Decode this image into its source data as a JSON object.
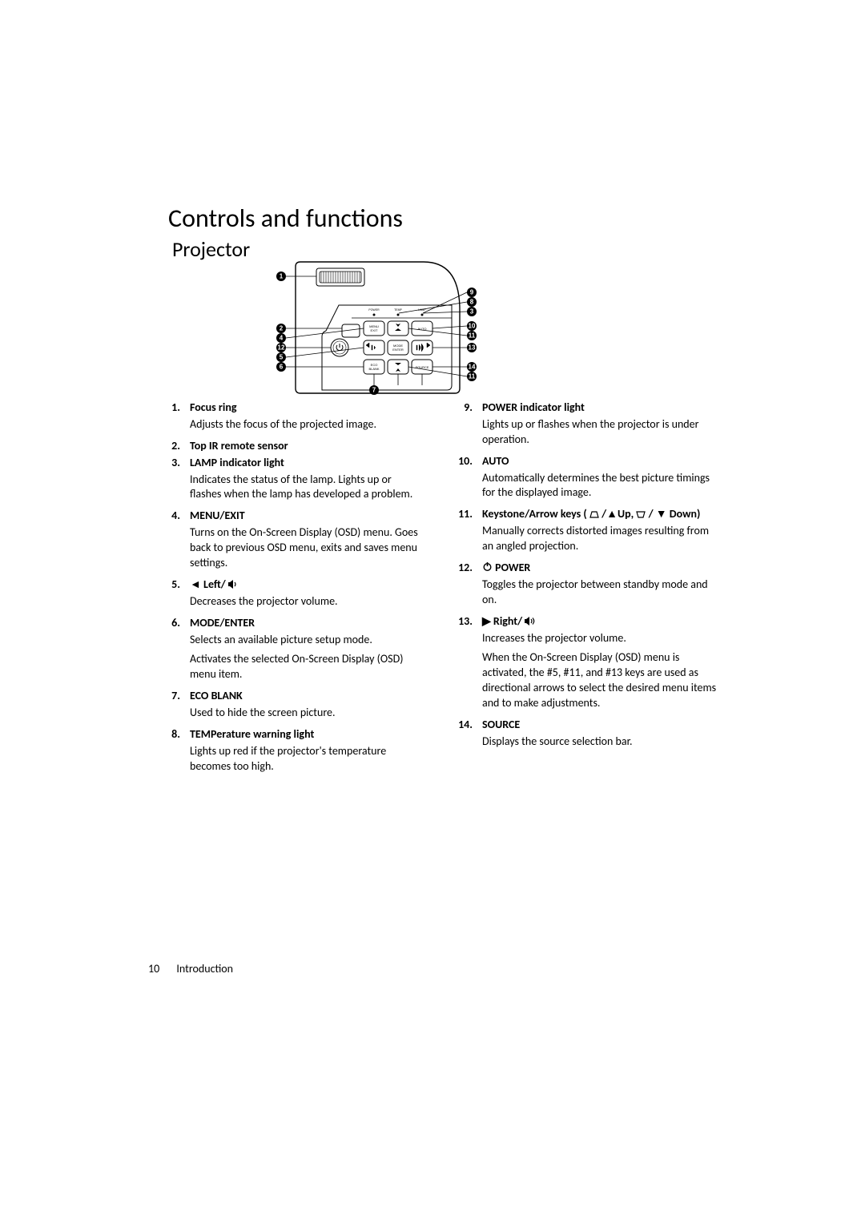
{
  "page": {
    "title": "Controls and functions",
    "subtitle": "Projector",
    "footer_page": "10",
    "footer_section": "Introduction"
  },
  "diagram": {
    "buttons": {
      "menu_exit": "MENU\nEXIT",
      "auto": "AUTO",
      "mode_enter": "MODE\nENTER",
      "eco_blank": "ECO\nBLANK",
      "source": "SOURCE"
    },
    "indicators": {
      "power": "POWER",
      "temp": "TEMP",
      "lamp": "LAMP"
    },
    "callouts": [
      "1",
      "2",
      "3",
      "4",
      "5",
      "6",
      "7",
      "8",
      "9",
      "10",
      "11",
      "12",
      "13",
      "14"
    ]
  },
  "left_items": [
    {
      "num": "1.",
      "heading": "Focus ring",
      "desc": "Adjusts the focus of the projected image."
    },
    {
      "num": "2.",
      "heading": "Top IR remote sensor",
      "desc": ""
    },
    {
      "num": "3.",
      "heading": "LAMP indicator light",
      "desc": "Indicates the status of the lamp. Lights up or flashes when the lamp has developed a problem."
    },
    {
      "num": "4.",
      "heading": "MENU/EXIT",
      "desc": "Turns on the On-Screen Display (OSD) menu. Goes back to previous OSD menu, exits and saves menu settings."
    },
    {
      "num": "5.",
      "heading": "◄ Left/ ",
      "icon": "vol-down",
      "desc": "Decreases the projector volume."
    },
    {
      "num": "6.",
      "heading": "MODE/ENTER",
      "desc": "Selects an available picture setup mode.",
      "desc2": "Activates the selected On-Screen Display (OSD) menu item."
    },
    {
      "num": "7.",
      "heading": "ECO BLANK",
      "desc": "Used to hide the screen picture."
    },
    {
      "num": "8.",
      "heading": "TEMPerature warning light",
      "desc": "Lights up red if the projector's temperature becomes too high."
    }
  ],
  "right_items": [
    {
      "num": "9.",
      "heading": "POWER indicator light",
      "desc": "Lights up or flashes when the projector is under operation."
    },
    {
      "num": "10.",
      "heading": "AUTO",
      "desc": "Automatically determines the best picture timings for the displayed image."
    },
    {
      "num": "11.",
      "heading_pre": "Keystone/Arrow keys ( ",
      "heading_mid1": " /▲Up,  ",
      "heading_mid2": " / ▼ Down)",
      "desc": "Manually corrects distorted images resulting from an angled projection."
    },
    {
      "num": "12.",
      "heading": " POWER",
      "icon": "power",
      "desc": "Toggles the projector between standby mode and on."
    },
    {
      "num": "13.",
      "heading": "▶ Right/ ",
      "icon": "vol-up",
      "desc": "Increases the projector volume.",
      "desc2": "When the On-Screen Display (OSD) menu is activated, the #5, #11, and #13 keys are used as directional arrows to select the desired menu items and to make adjustments."
    },
    {
      "num": "14.",
      "heading": "SOURCE",
      "desc": "Displays the source selection bar."
    }
  ]
}
